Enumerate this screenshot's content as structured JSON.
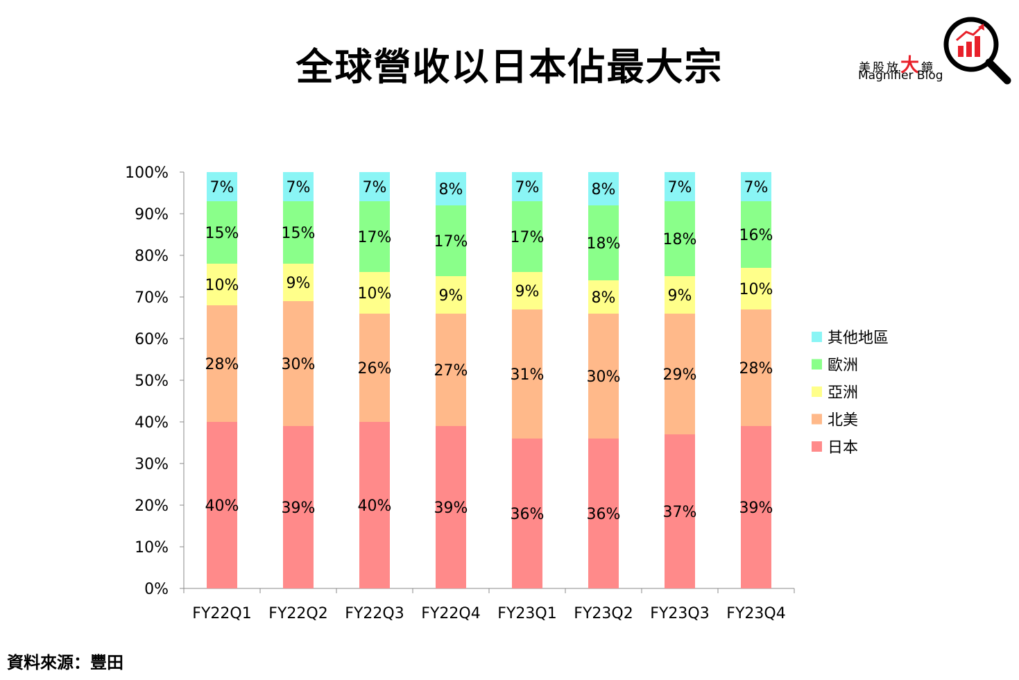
{
  "chart_data": {
    "type": "bar",
    "stacked": true,
    "title": "全球營收以日本佔最大宗",
    "categories": [
      "FY22Q1",
      "FY22Q2",
      "FY22Q3",
      "FY22Q4",
      "FY23Q1",
      "FY23Q2",
      "FY23Q3",
      "FY23Q4"
    ],
    "series": [
      {
        "name": "日本",
        "color": "#ff8a8a",
        "values": [
          40,
          39,
          40,
          39,
          36,
          36,
          37,
          39
        ]
      },
      {
        "name": "北美",
        "color": "#ffb98a",
        "values": [
          28,
          30,
          26,
          27,
          31,
          30,
          29,
          28
        ]
      },
      {
        "name": "亞洲",
        "color": "#ffff8a",
        "values": [
          10,
          9,
          10,
          9,
          9,
          8,
          9,
          10
        ]
      },
      {
        "name": "歐洲",
        "color": "#8aff8a",
        "values": [
          15,
          15,
          17,
          17,
          17,
          18,
          18,
          16
        ]
      },
      {
        "name": "其他地區",
        "color": "#8af5f5",
        "values": [
          7,
          7,
          7,
          8,
          7,
          8,
          7,
          7
        ]
      }
    ],
    "y_ticks": [
      "0%",
      "10%",
      "20%",
      "30%",
      "40%",
      "50%",
      "60%",
      "70%",
      "80%",
      "90%",
      "100%"
    ],
    "ylim": [
      0,
      100
    ],
    "legend_position": "right",
    "grid": false
  },
  "logo": {
    "text_cn_1": "美股放",
    "text_cn_big": "大",
    "text_cn_2": "鏡",
    "text_en": "Magnifier Blog"
  },
  "source": "資料來源：豐田"
}
